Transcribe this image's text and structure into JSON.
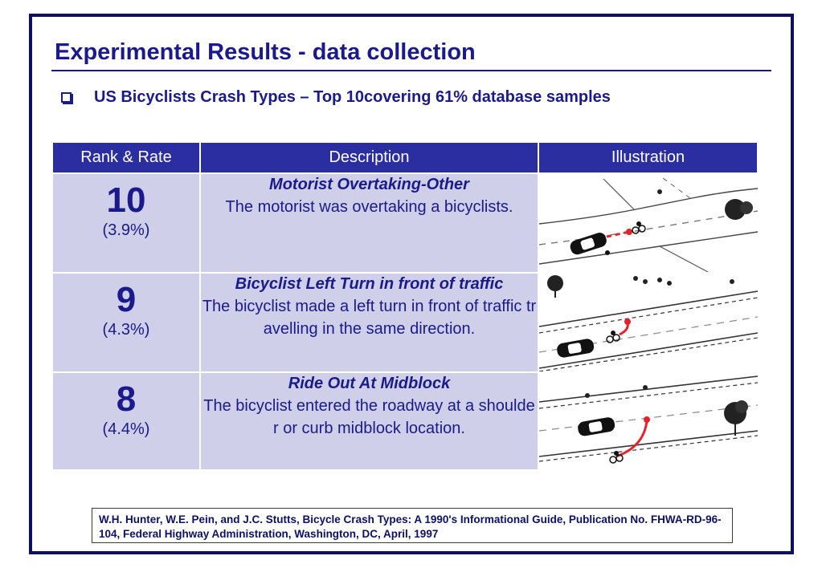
{
  "slide": {
    "title": "Experimental Results - data collection",
    "bullet": "US Bicyclists Crash Types – Top 10covering 61% database samples"
  },
  "table": {
    "headers": [
      "Rank & Rate",
      "Description",
      "Illustration"
    ],
    "rows": [
      {
        "rank": "10",
        "rate": "(3.9%)",
        "title": "Motorist Overtaking-Other",
        "description": "The motorist was overtaking a bicyclists.",
        "illustration": "crash-motorist-overtaking-diagram"
      },
      {
        "rank": "9",
        "rate": "(4.3%)",
        "title": "Bicyclist Left Turn in front of traffic",
        "description": "The bicyclist made a left turn in front of traffic travelling in the same direction.",
        "illustration": "crash-bicyclist-left-turn-diagram"
      },
      {
        "rank": "8",
        "rate": "(4.4%)",
        "title": "Ride Out At Midblock",
        "description": "The bicyclist entered the roadway at a shoulder or curb midblock location.",
        "illustration": "crash-ride-out-midblock-diagram"
      }
    ]
  },
  "citation": "W.H. Hunter, W.E. Pein, and J.C. Stutts, Bicycle Crash Types: A 1990's Informational Guide, Publication No. FHWA-RD-96-104, Federal Highway Administration, Washington, DC, April, 1997",
  "colors": {
    "frame": "#0d1065",
    "text": "#1a1a8c",
    "header_bg": "#2a2ea0",
    "cell_bg": "#cfcfe9",
    "crash_path": "#e8202a"
  }
}
